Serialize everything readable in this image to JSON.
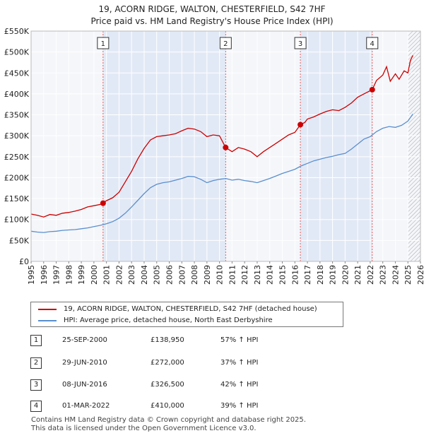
{
  "title": {
    "line1": "19, ACORN RIDGE, WALTON, CHESTERFIELD, S42 7HF",
    "line2": "Price paid vs. HM Land Registry's House Price Index (HPI)"
  },
  "chart_data": {
    "type": "line",
    "xlim": [
      1995,
      2026
    ],
    "ylim": [
      0,
      550000
    ],
    "y_ticks": [
      {
        "value": 0,
        "label": "£0"
      },
      {
        "value": 50000,
        "label": "£50K"
      },
      {
        "value": 100000,
        "label": "£100K"
      },
      {
        "value": 150000,
        "label": "£150K"
      },
      {
        "value": 200000,
        "label": "£200K"
      },
      {
        "value": 250000,
        "label": "£250K"
      },
      {
        "value": 300000,
        "label": "£300K"
      },
      {
        "value": 350000,
        "label": "£350K"
      },
      {
        "value": 400000,
        "label": "£400K"
      },
      {
        "value": 450000,
        "label": "£450K"
      },
      {
        "value": 500000,
        "label": "£500K"
      },
      {
        "value": 550000,
        "label": "£550K"
      }
    ],
    "x_ticks": [
      "1995",
      "1996",
      "1997",
      "1998",
      "1999",
      "2000",
      "2001",
      "2002",
      "2003",
      "2004",
      "2005",
      "2006",
      "2007",
      "2008",
      "2009",
      "2010",
      "2011",
      "2012",
      "2013",
      "2014",
      "2015",
      "2016",
      "2017",
      "2018",
      "2019",
      "2020",
      "2021",
      "2022",
      "2023",
      "2024",
      "2025",
      "2026"
    ],
    "grid": true,
    "shaded_periods": [
      [
        2000.73,
        2010.49
      ],
      [
        2016.44,
        2022.16
      ]
    ],
    "hatched_from": 2025.0,
    "series": [
      {
        "name": "19, ACORN RIDGE, WALTON, CHESTERFIELD, S42 7HF (detached house)",
        "color": "#cc0000",
        "points": [
          [
            1995.0,
            113000
          ],
          [
            1995.5,
            110000
          ],
          [
            1996.0,
            106000
          ],
          [
            1996.5,
            112000
          ],
          [
            1997.0,
            110000
          ],
          [
            1997.5,
            115000
          ],
          [
            1998.0,
            117000
          ],
          [
            1998.5,
            120000
          ],
          [
            1999.0,
            124000
          ],
          [
            1999.5,
            130000
          ],
          [
            2000.0,
            133000
          ],
          [
            2000.5,
            136000
          ],
          [
            2000.73,
            138950
          ],
          [
            2001.0,
            145000
          ],
          [
            2001.5,
            152000
          ],
          [
            2002.0,
            165000
          ],
          [
            2002.5,
            190000
          ],
          [
            2003.0,
            215000
          ],
          [
            2003.5,
            245000
          ],
          [
            2004.0,
            270000
          ],
          [
            2004.5,
            290000
          ],
          [
            2005.0,
            298000
          ],
          [
            2005.5,
            300000
          ],
          [
            2006.0,
            302000
          ],
          [
            2006.5,
            305000
          ],
          [
            2007.0,
            312000
          ],
          [
            2007.5,
            318000
          ],
          [
            2008.0,
            316000
          ],
          [
            2008.5,
            310000
          ],
          [
            2009.0,
            298000
          ],
          [
            2009.5,
            302000
          ],
          [
            2010.0,
            300000
          ],
          [
            2010.49,
            272000
          ],
          [
            2011.0,
            262000
          ],
          [
            2011.5,
            272000
          ],
          [
            2012.0,
            268000
          ],
          [
            2012.5,
            262000
          ],
          [
            2013.0,
            250000
          ],
          [
            2013.5,
            262000
          ],
          [
            2014.0,
            272000
          ],
          [
            2014.5,
            282000
          ],
          [
            2015.0,
            292000
          ],
          [
            2015.5,
            302000
          ],
          [
            2016.0,
            308000
          ],
          [
            2016.44,
            326500
          ],
          [
            2016.8,
            332000
          ],
          [
            2017.0,
            340000
          ],
          [
            2017.5,
            345000
          ],
          [
            2018.0,
            352000
          ],
          [
            2018.5,
            358000
          ],
          [
            2019.0,
            362000
          ],
          [
            2019.5,
            360000
          ],
          [
            2020.0,
            368000
          ],
          [
            2020.5,
            378000
          ],
          [
            2021.0,
            392000
          ],
          [
            2021.5,
            400000
          ],
          [
            2022.16,
            410000
          ],
          [
            2022.5,
            432000
          ],
          [
            2023.0,
            445000
          ],
          [
            2023.3,
            465000
          ],
          [
            2023.6,
            430000
          ],
          [
            2024.0,
            448000
          ],
          [
            2024.3,
            435000
          ],
          [
            2024.7,
            455000
          ],
          [
            2025.0,
            450000
          ],
          [
            2025.2,
            480000
          ],
          [
            2025.4,
            492000
          ]
        ]
      },
      {
        "name": "HPI: Average price, detached house, North East Derbyshire",
        "color": "#5a8fce",
        "points": [
          [
            1995.0,
            72000
          ],
          [
            1995.5,
            70000
          ],
          [
            1996.0,
            69000
          ],
          [
            1996.5,
            71000
          ],
          [
            1997.0,
            72000
          ],
          [
            1997.5,
            74000
          ],
          [
            1998.0,
            75000
          ],
          [
            1998.5,
            76000
          ],
          [
            1999.0,
            78000
          ],
          [
            1999.5,
            80000
          ],
          [
            2000.0,
            83000
          ],
          [
            2000.5,
            86000
          ],
          [
            2001.0,
            90000
          ],
          [
            2001.5,
            95000
          ],
          [
            2002.0,
            103000
          ],
          [
            2002.5,
            115000
          ],
          [
            2003.0,
            130000
          ],
          [
            2003.5,
            146000
          ],
          [
            2004.0,
            162000
          ],
          [
            2004.5,
            176000
          ],
          [
            2005.0,
            184000
          ],
          [
            2005.5,
            188000
          ],
          [
            2006.0,
            190000
          ],
          [
            2006.5,
            194000
          ],
          [
            2007.0,
            198000
          ],
          [
            2007.5,
            203000
          ],
          [
            2008.0,
            202000
          ],
          [
            2008.5,
            196000
          ],
          [
            2009.0,
            188000
          ],
          [
            2009.5,
            193000
          ],
          [
            2010.0,
            196000
          ],
          [
            2010.5,
            198000
          ],
          [
            2011.0,
            194000
          ],
          [
            2011.5,
            196000
          ],
          [
            2012.0,
            193000
          ],
          [
            2012.5,
            191000
          ],
          [
            2013.0,
            188000
          ],
          [
            2013.5,
            193000
          ],
          [
            2014.0,
            198000
          ],
          [
            2014.5,
            204000
          ],
          [
            2015.0,
            210000
          ],
          [
            2015.5,
            215000
          ],
          [
            2016.0,
            220000
          ],
          [
            2016.5,
            228000
          ],
          [
            2017.0,
            234000
          ],
          [
            2017.5,
            240000
          ],
          [
            2018.0,
            244000
          ],
          [
            2018.5,
            248000
          ],
          [
            2019.0,
            251000
          ],
          [
            2019.5,
            255000
          ],
          [
            2020.0,
            258000
          ],
          [
            2020.5,
            268000
          ],
          [
            2021.0,
            280000
          ],
          [
            2021.5,
            292000
          ],
          [
            2022.0,
            298000
          ],
          [
            2022.5,
            310000
          ],
          [
            2023.0,
            318000
          ],
          [
            2023.5,
            322000
          ],
          [
            2024.0,
            320000
          ],
          [
            2024.5,
            325000
          ],
          [
            2025.0,
            335000
          ],
          [
            2025.4,
            352000
          ]
        ]
      }
    ],
    "sales": [
      {
        "id": "1",
        "x": 2000.73,
        "y": 138950
      },
      {
        "id": "2",
        "x": 2010.49,
        "y": 272000
      },
      {
        "id": "3",
        "x": 2016.44,
        "y": 326500
      },
      {
        "id": "4",
        "x": 2022.16,
        "y": 410000
      }
    ]
  },
  "legend": {
    "property_label": "19, ACORN RIDGE, WALTON, CHESTERFIELD, S42 7HF (detached house)",
    "hpi_label": "HPI: Average price, detached house, North East Derbyshire",
    "property_color": "#cc0000",
    "hpi_color": "#5a8fce"
  },
  "sales_table": [
    {
      "num": "1",
      "date": "25-SEP-2000",
      "price": "£138,950",
      "hpi": "57% ↑ HPI"
    },
    {
      "num": "2",
      "date": "29-JUN-2010",
      "price": "£272,000",
      "hpi": "37% ↑ HPI"
    },
    {
      "num": "3",
      "date": "08-JUN-2016",
      "price": "£326,500",
      "hpi": "42% ↑ HPI"
    },
    {
      "num": "4",
      "date": "01-MAR-2022",
      "price": "£410,000",
      "hpi": "39% ↑ HPI"
    }
  ],
  "footer": {
    "line1": "Contains HM Land Registry data © Crown copyright and database right 2025.",
    "line2": "This data is licensed under the Open Government Licence v3.0."
  }
}
